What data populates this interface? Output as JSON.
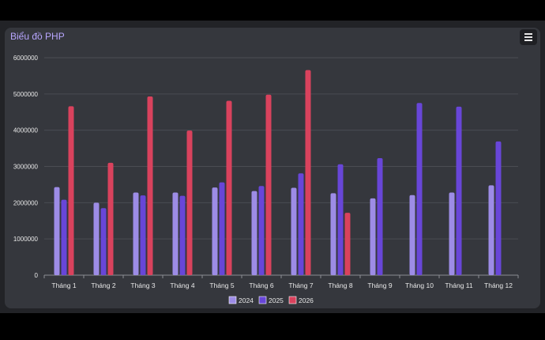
{
  "chart_title": "Biểu đồ PHP",
  "menu_icon": "hamburger-menu-icon",
  "colors": {
    "background": "#222327",
    "card": "#35373d",
    "title": "#b8a6ff",
    "grid": "#4a4c53"
  },
  "chart_data": {
    "type": "bar",
    "title": "Biểu đồ PHP",
    "xlabel": "",
    "ylabel": "",
    "ylim": [
      0,
      6000000
    ],
    "yticks": [
      "0",
      "1000000",
      "2000000",
      "3000000",
      "4000000",
      "5000000",
      "6000000"
    ],
    "grid": true,
    "legend_position": "bottom",
    "categories": [
      "Tháng 1",
      "Tháng 2",
      "Tháng 3",
      "Tháng 4",
      "Tháng 5",
      "Tháng 6",
      "Tháng 7",
      "Tháng 8",
      "Tháng 9",
      "Tháng 10",
      "Tháng 11",
      "Tháng 12"
    ],
    "series": [
      {
        "name": "2024",
        "color": "#9d8ce6",
        "values": [
          2430000,
          2000000,
          2280000,
          2280000,
          2420000,
          2320000,
          2410000,
          2260000,
          2120000,
          2210000,
          2280000,
          2480000
        ]
      },
      {
        "name": "2025",
        "color": "#6846d8",
        "values": [
          2080000,
          1850000,
          2200000,
          2190000,
          2560000,
          2460000,
          2810000,
          3060000,
          3230000,
          4750000,
          4650000,
          3690000
        ]
      },
      {
        "name": "2026",
        "color": "#d9425d",
        "values": [
          4660000,
          3100000,
          4930000,
          3990000,
          4810000,
          4980000,
          5660000,
          1720000,
          null,
          null,
          null,
          null
        ]
      }
    ]
  }
}
